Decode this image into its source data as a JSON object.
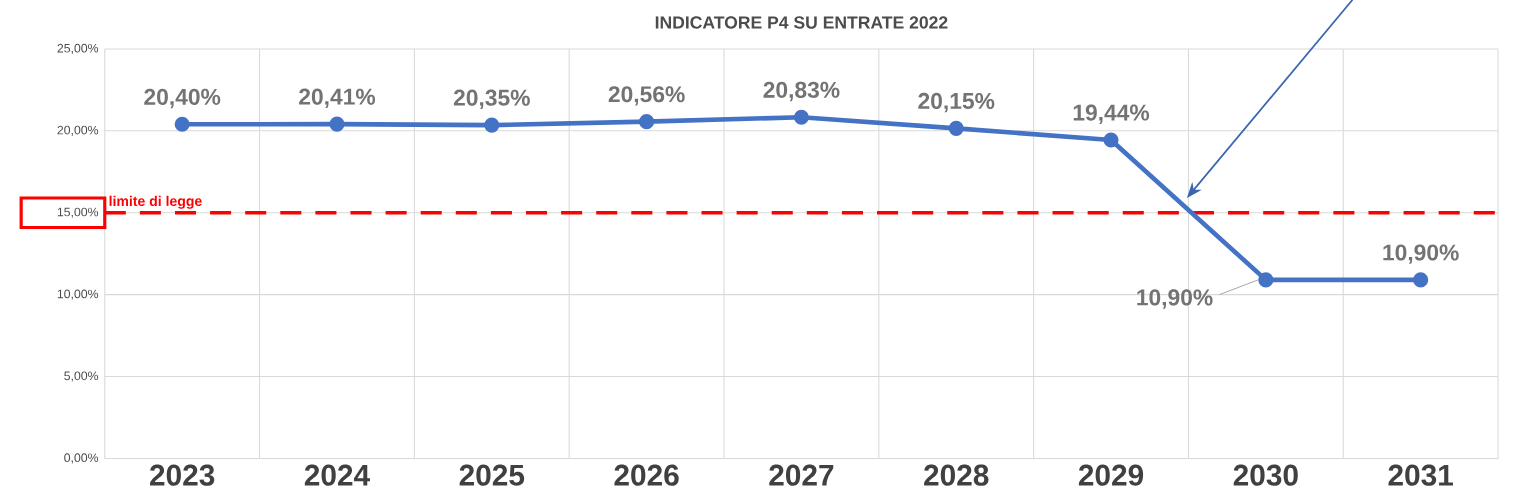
{
  "chart_data": {
    "type": "line",
    "title": "INDICATORE P4 SU ENTRATE 2022",
    "categories": [
      "2023",
      "2024",
      "2025",
      "2026",
      "2027",
      "2028",
      "2029",
      "2030",
      "2031"
    ],
    "series": [
      {
        "color": "#4472c4",
        "values": [
          20.4,
          20.41,
          20.35,
          20.56,
          20.83,
          20.15,
          19.44,
          10.9,
          10.9
        ],
        "value_labels": [
          "20,40%",
          "20,41%",
          "20,35%",
          "20,56%",
          "20,83%",
          "20,15%",
          "19,44%",
          "10,90%",
          "10,90%"
        ]
      }
    ],
    "ylim": [
      0,
      25
    ],
    "yticks": [
      {
        "value": 0,
        "label": "0,00%"
      },
      {
        "value": 5,
        "label": "5,00%"
      },
      {
        "value": 10,
        "label": "10,00%"
      },
      {
        "value": 15,
        "label": "15,00%"
      },
      {
        "value": 20,
        "label": "20,00%"
      },
      {
        "value": 25,
        "label": "25,00%"
      }
    ],
    "ref_lines": [
      {
        "axis": "y",
        "value": 15,
        "label": "limite di legge",
        "color": "#ff0000",
        "line_style": "dashed"
      }
    ],
    "grid": true,
    "marker": "circle",
    "line_style": "solid"
  }
}
